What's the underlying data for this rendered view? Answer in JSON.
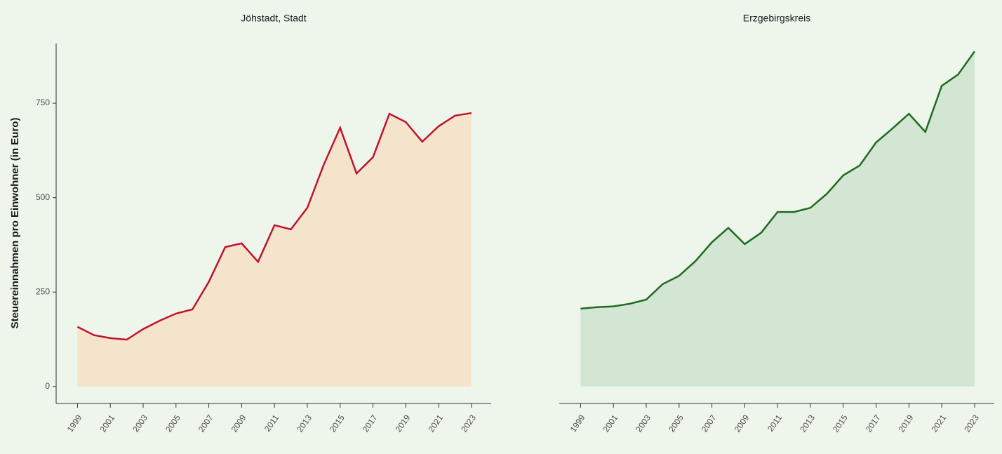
{
  "chart_data": [
    {
      "type": "area",
      "title": "Jöhstadt, Stadt",
      "ylabel": "Steuereinnahmen pro Einwohner (in Euro)",
      "x": [
        1999,
        2000,
        2001,
        2002,
        2003,
        2004,
        2005,
        2006,
        2007,
        2008,
        2009,
        2010,
        2011,
        2012,
        2013,
        2014,
        2015,
        2016,
        2017,
        2018,
        2019,
        2020,
        2021,
        2022,
        2023
      ],
      "values": [
        158,
        136,
        128,
        124,
        152,
        174,
        193,
        204,
        277,
        369,
        379,
        330,
        427,
        416,
        473,
        587,
        685,
        564,
        607,
        722,
        700,
        648,
        689,
        717,
        724
      ],
      "color": "#c0122f",
      "fill_color": "#f5e4cc",
      "xlim": [
        1997.7,
        2024.2
      ],
      "xticks": [
        1999,
        2001,
        2003,
        2005,
        2007,
        2009,
        2011,
        2013,
        2015,
        2017,
        2019,
        2021,
        2023
      ],
      "ylim": [
        -45,
        908
      ],
      "yticks": [
        0,
        250,
        500,
        750
      ]
    },
    {
      "type": "area",
      "title": "Erzgebirgskreis",
      "x": [
        1999,
        2000,
        2001,
        2002,
        2003,
        2004,
        2005,
        2006,
        2007,
        2008,
        2009,
        2010,
        2011,
        2012,
        2013,
        2014,
        2015,
        2016,
        2017,
        2018,
        2019,
        2020,
        2021,
        2022,
        2023
      ],
      "values": [
        206,
        210,
        212,
        219,
        230,
        271,
        293,
        332,
        382,
        420,
        377,
        407,
        462,
        462,
        473,
        510,
        559,
        585,
        646,
        683,
        722,
        674,
        796,
        826,
        887
      ],
      "color": "#1f6b1f",
      "fill_color": "#d3e6d3",
      "xlim": [
        1997.7,
        2024.2
      ],
      "xticks": [
        1999,
        2001,
        2003,
        2005,
        2007,
        2009,
        2011,
        2013,
        2015,
        2017,
        2019,
        2021,
        2023
      ],
      "ylim": [
        -45,
        908
      ]
    }
  ]
}
